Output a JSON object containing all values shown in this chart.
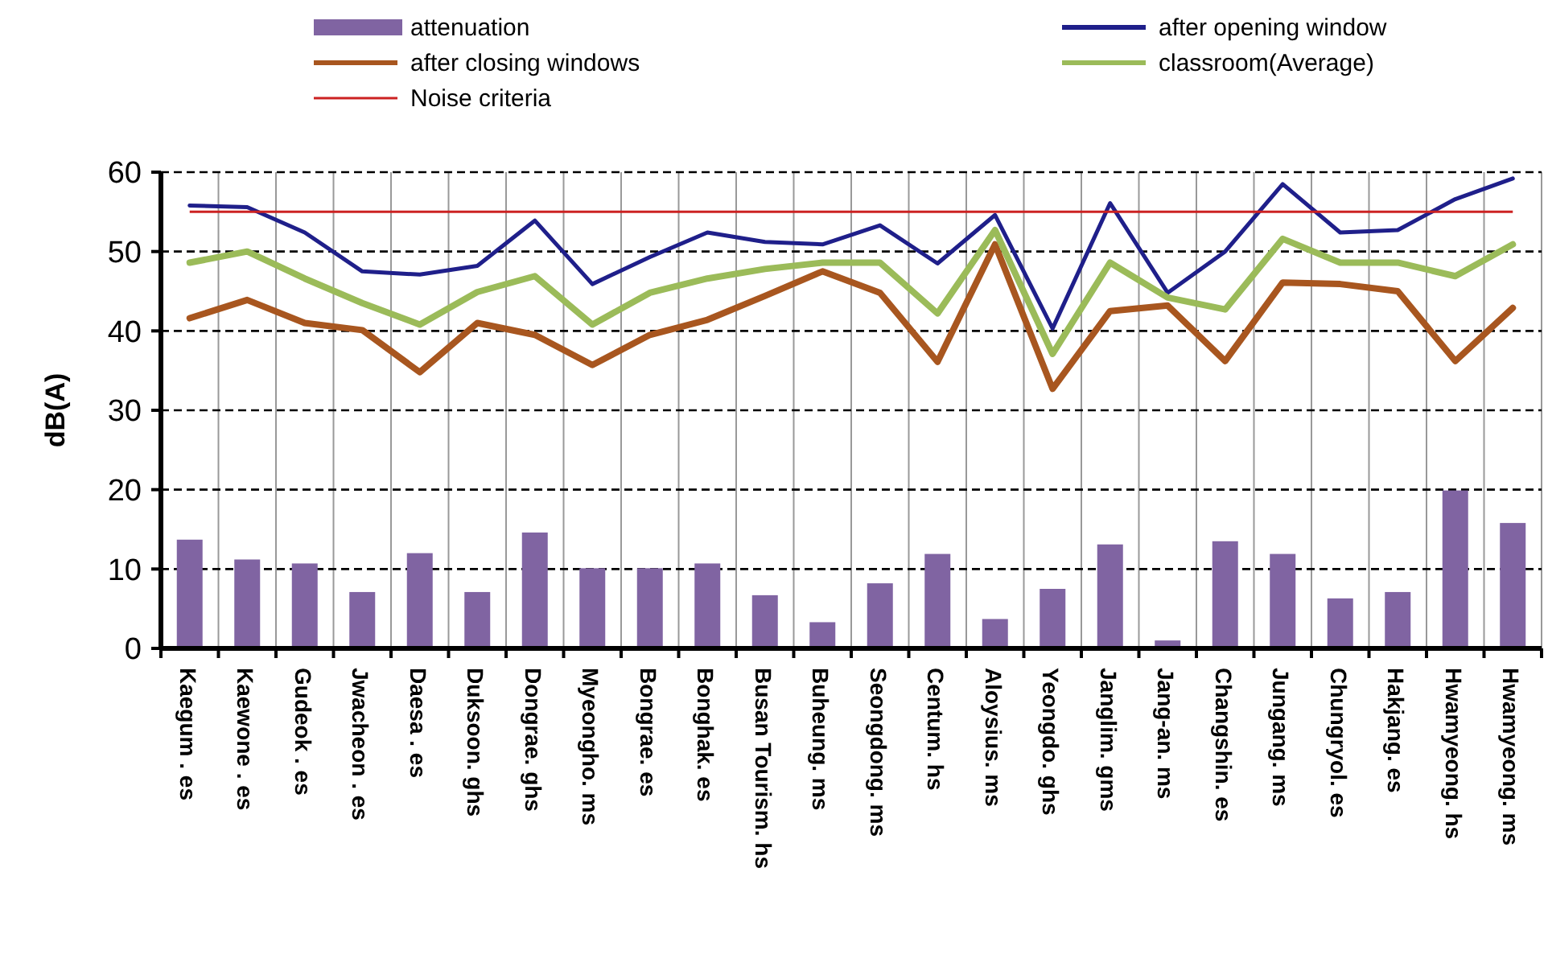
{
  "chart_data": {
    "type": "bar",
    "ylabel": "dB(A)",
    "categories": [
      "Kaegum . es",
      "Kaewone . es",
      "Gudeok . es",
      "Jwacheon . es",
      "Daesa . es",
      "Duksoon. ghs",
      "Dongrae. ghs",
      "Myeongho. ms",
      "Bongrae. es",
      "Bonghak. es",
      "Busan Tourism. hs",
      "Buheung. ms",
      "Seongdong. ms",
      "Centum. hs",
      "Aloysius. ms",
      "Yeongdo. ghs",
      "Janglim. gms",
      "Jang-an. ms",
      "Changshin. es",
      "Jungang. ms",
      "Chungryol. es",
      "Hakjang. es",
      "Hwamyeong. hs",
      "Hwamyeong. ms"
    ],
    "series": [
      {
        "name": "attenuation",
        "color": "#8064a2",
        "values": [
          13.7,
          11.2,
          10.7,
          7.1,
          12,
          7.1,
          14.6,
          10.1,
          10.1,
          10.7,
          6.7,
          3.3,
          8.2,
          11.9,
          3.7,
          7.5,
          13.1,
          1,
          13.5,
          11.9,
          6.3,
          7.1,
          19.9,
          15.8
        ]
      },
      {
        "name": "after opening window",
        "type": "line",
        "color": "#1f1f8a",
        "values": [
          55.8,
          55.6,
          52.4,
          47.5,
          47.1,
          48.2,
          53.9,
          45.9,
          49.3,
          52.4,
          51.2,
          50.9,
          53.3,
          48.5,
          54.6,
          40.3,
          56.1,
          44.8,
          50,
          58.5,
          52.4,
          52.7,
          56.6,
          59.2
        ]
      },
      {
        "name": "after closing windows",
        "type": "line",
        "color": "#a8561f",
        "values": [
          41.6,
          43.9,
          41,
          40.1,
          34.8,
          41,
          39.5,
          35.7,
          39.5,
          41.4,
          44.4,
          47.5,
          44.8,
          36.1,
          50.9,
          32.7,
          42.5,
          43.2,
          36.2,
          46.1,
          45.9,
          45,
          36.2,
          42.9
        ]
      },
      {
        "name": "classroom(Average)",
        "type": "line",
        "color": "#9bbb59",
        "values": [
          48.6,
          50,
          46.6,
          43.5,
          40.8,
          44.9,
          46.9,
          40.8,
          44.8,
          46.6,
          47.8,
          48.6,
          48.6,
          42.2,
          52.7,
          37.1,
          48.6,
          44.2,
          42.7,
          51.6,
          48.6,
          48.6,
          46.9,
          50.9
        ]
      }
    ],
    "ref_lines": [
      {
        "axis": "y",
        "value": 55,
        "label": "Noise criteria",
        "color": "#cc2222"
      }
    ],
    "ylim": [
      0,
      60
    ],
    "yticks": [
      0,
      10,
      20,
      30,
      40,
      50,
      60
    ],
    "grid": true,
    "legend": "top"
  }
}
